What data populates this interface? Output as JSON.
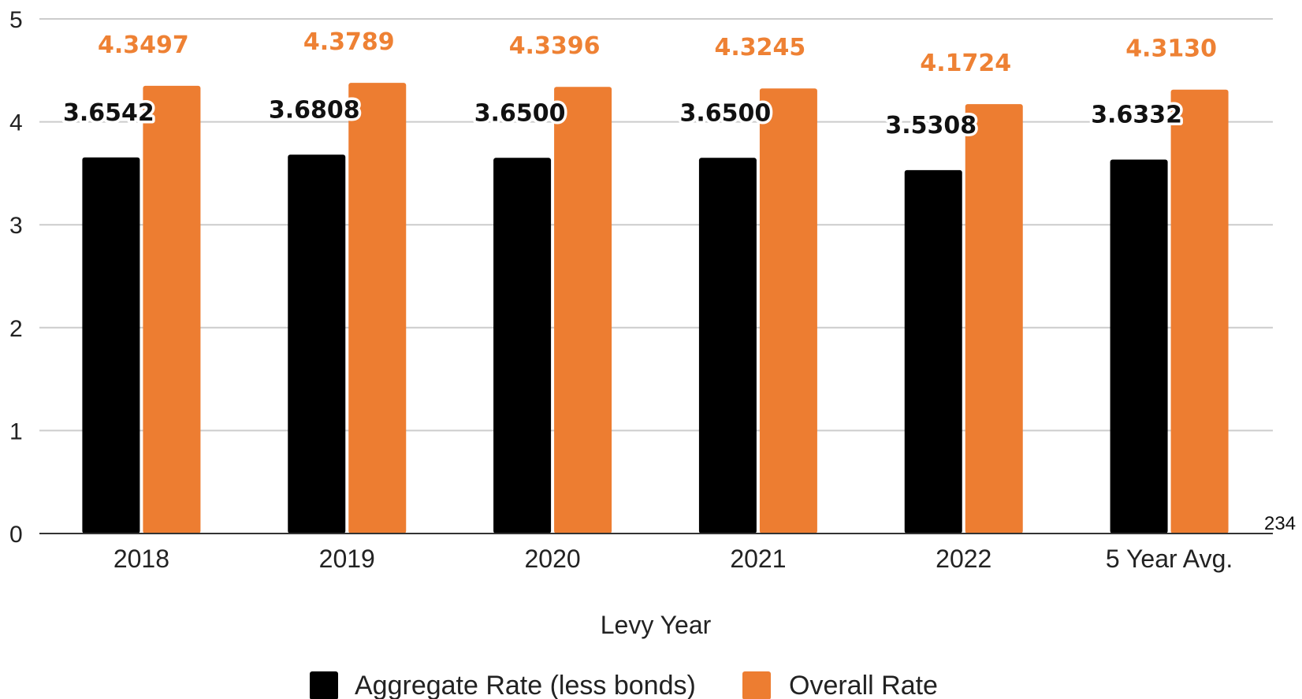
{
  "chart_data": {
    "type": "bar",
    "categories": [
      "2018",
      "2019",
      "2020",
      "2021",
      "2022",
      "5 Year Avg."
    ],
    "series": [
      {
        "name": "Aggregate Rate (less bonds)",
        "color": "#000000",
        "values": [
          3.6542,
          3.6808,
          3.65,
          3.65,
          3.5308,
          3.6332
        ],
        "labels": [
          "3.6542",
          "3.6808",
          "3.6500",
          "3.6500",
          "3.5308",
          "3.6332"
        ]
      },
      {
        "name": "Overall Rate",
        "color": "#ED7D31",
        "values": [
          4.3497,
          4.3789,
          4.3396,
          4.3245,
          4.1724,
          4.313
        ],
        "labels": [
          "4.3497",
          "4.3789",
          "4.3396",
          "4.3245",
          "4.1724",
          "4.3130"
        ]
      }
    ],
    "xlabel": "Levy Year",
    "ylabel": "",
    "ylim": [
      0,
      5
    ],
    "yticks": [
      "0",
      "1",
      "2",
      "3",
      "4",
      "5"
    ],
    "grid": true,
    "legend_position": "bottom",
    "label_color_overall": "#EE8134",
    "gridline_color": "#CCCCCC"
  },
  "page_number": "234"
}
